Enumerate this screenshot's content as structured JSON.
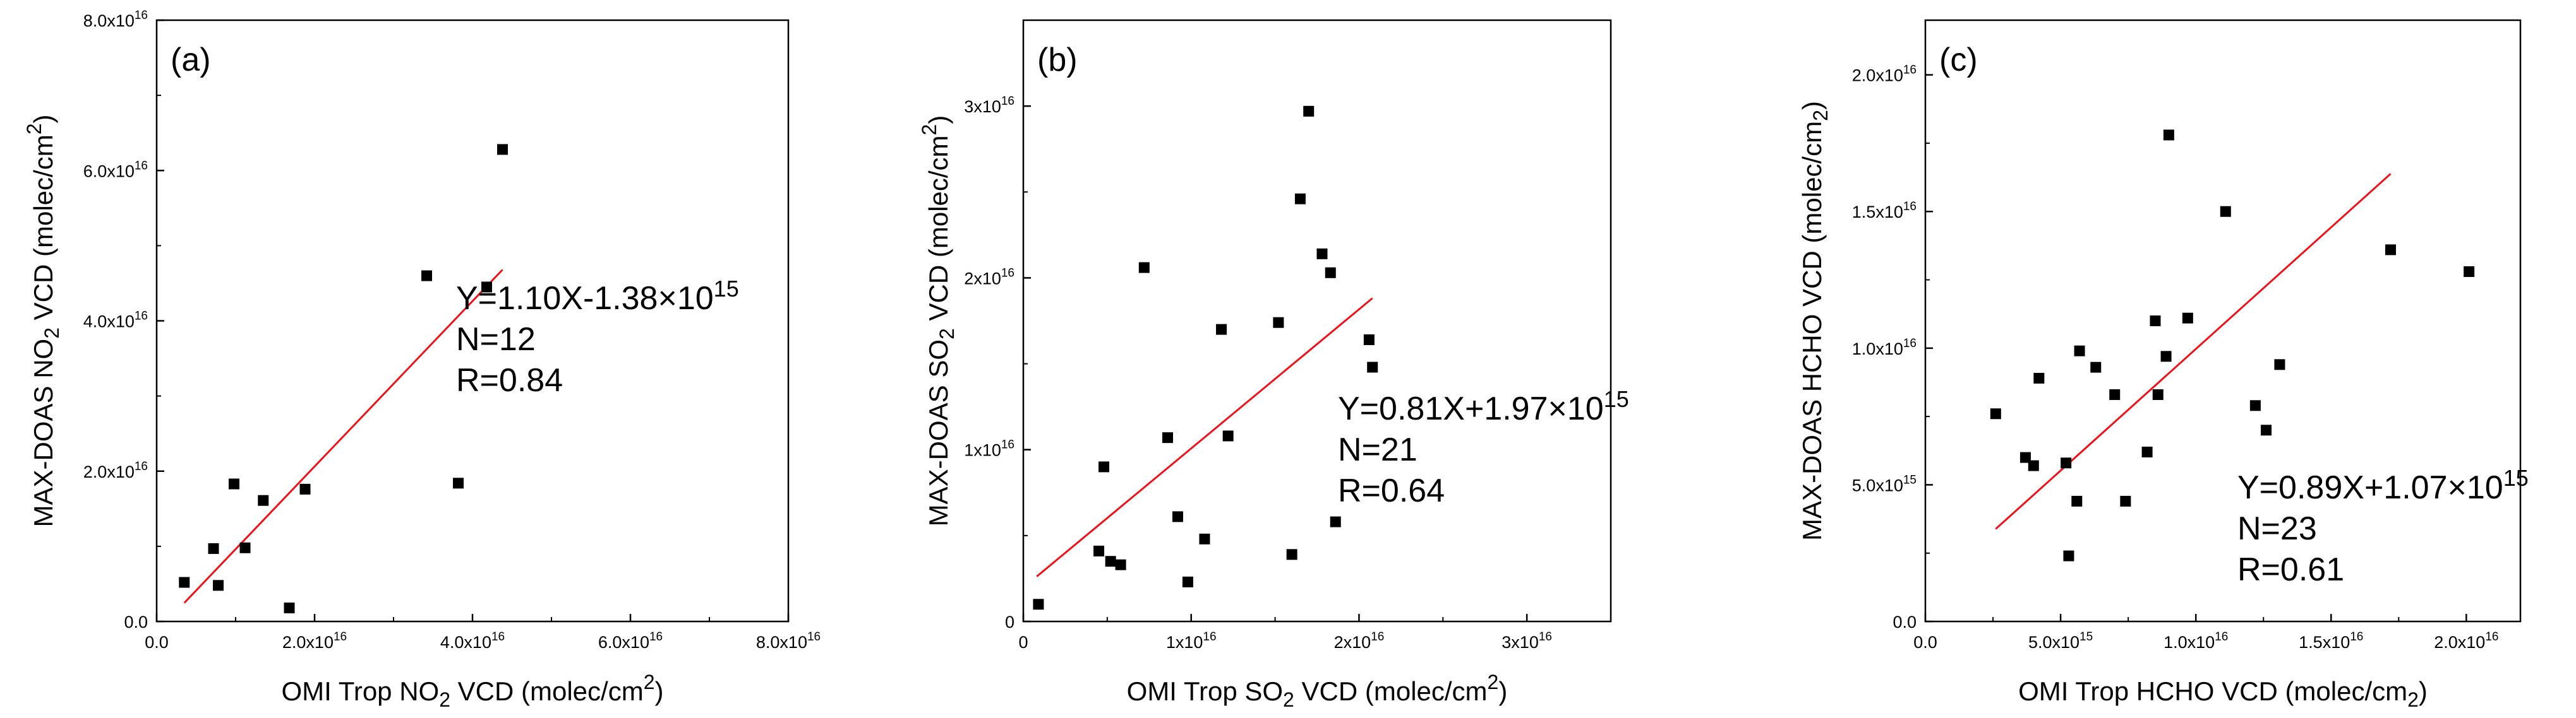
{
  "chart_data": [
    {
      "type": "scatter",
      "panel_label": "(a)",
      "title": "",
      "xlabel_parts": [
        "OMI Trop NO",
        "2",
        " VCD (molec/cm",
        "2",
        ")"
      ],
      "ylabel_parts": [
        "MAX-DOAS NO",
        "2",
        " VCD (molec/cm",
        "2",
        ")"
      ],
      "xlim": [
        0,
        8e+16
      ],
      "ylim": [
        0,
        8e+16
      ],
      "xticks": [
        0.0,
        2e+16,
        4e+16,
        6e+16,
        8e+16
      ],
      "yticks": [
        0.0,
        2e+16,
        4e+16,
        6e+16,
        8e+16
      ],
      "xtick_labels": [
        {
          "base": "0.0",
          "exp": ""
        },
        {
          "base": "2.0x10",
          "exp": "16"
        },
        {
          "base": "4.0x10",
          "exp": "16"
        },
        {
          "base": "6.0x10",
          "exp": "16"
        },
        {
          "base": "8.0x10",
          "exp": "16"
        }
      ],
      "ytick_labels": [
        {
          "base": "0.0",
          "exp": ""
        },
        {
          "base": "2.0x10",
          "exp": "16"
        },
        {
          "base": "4.0x10",
          "exp": "16"
        },
        {
          "base": "6.0x10",
          "exp": "16"
        },
        {
          "base": "8.0x10",
          "exp": "16"
        }
      ],
      "points": [
        [
          3500000000000000.0,
          5200000000000000.0
        ],
        [
          7200000000000000.0,
          9700000000000000.0
        ],
        [
          7800000000000000.0,
          4800000000000000.0
        ],
        [
          9800000000000000.0,
          1.83e+16
        ],
        [
          1.12e+16,
          9800000000000000.0
        ],
        [
          1.35e+16,
          1.61e+16
        ],
        [
          1.68e+16,
          1800000000000000.0
        ],
        [
          1.88e+16,
          1.76e+16
        ],
        [
          3.42e+16,
          4.6e+16
        ],
        [
          3.82e+16,
          1.84e+16
        ],
        [
          4.18e+16,
          4.45e+16
        ],
        [
          4.38e+16,
          6.28e+16
        ]
      ],
      "fit_line": {
        "x": [
          3500000000000000.0,
          4.38e+16
        ],
        "slope": 1.1,
        "intercept": -1380000000000000.0,
        "color": "#e8141b"
      },
      "annotation": {
        "equation_base": "Y=1.10X-1.38×10",
        "equation_exp": "15",
        "n": "N=12",
        "r": "R=0.84"
      },
      "marker_color": "#000000"
    },
    {
      "type": "scatter",
      "panel_label": "(b)",
      "title": "",
      "xlabel_parts": [
        "OMI Trop SO",
        "2",
        " VCD (molec/cm",
        "2",
        ")"
      ],
      "ylabel_parts": [
        "MAX-DOAS SO",
        "2",
        " VCD (molec/cm",
        "2",
        ")"
      ],
      "xlim": [
        0,
        3.5e+16
      ],
      "ylim": [
        0,
        3.5e+16
      ],
      "xticks": [
        0,
        1e+16,
        2e+16,
        3e+16
      ],
      "yticks": [
        0,
        1e+16,
        2e+16,
        3e+16
      ],
      "xtick_labels": [
        {
          "base": "0",
          "exp": ""
        },
        {
          "base": "1x10",
          "exp": "16"
        },
        {
          "base": "2x10",
          "exp": "16"
        },
        {
          "base": "3x10",
          "exp": "16"
        }
      ],
      "ytick_labels": [
        {
          "base": "0",
          "exp": ""
        },
        {
          "base": "1x10",
          "exp": "16"
        },
        {
          "base": "2x10",
          "exp": "16"
        },
        {
          "base": "3x10",
          "exp": "16"
        }
      ],
      "points": [
        [
          900000000000000.0,
          1000000000000000.0
        ],
        [
          4500000000000000.0,
          4100000000000000.0
        ],
        [
          4800000000000000.0,
          9000000000000000.0
        ],
        [
          5200000000000000.0,
          3500000000000000.0
        ],
        [
          5800000000000000.0,
          3300000000000000.0
        ],
        [
          7200000000000000.0,
          2.06e+16
        ],
        [
          8600000000000000.0,
          1.07e+16
        ],
        [
          9200000000000000.0,
          6100000000000000.0
        ],
        [
          9800000000000000.0,
          2300000000000000.0
        ],
        [
          1.08e+16,
          4800000000000000.0
        ],
        [
          1.18e+16,
          1.7e+16
        ],
        [
          1.22e+16,
          1.08e+16
        ],
        [
          1.52e+16,
          1.74e+16
        ],
        [
          1.6e+16,
          3900000000000000.0
        ],
        [
          1.65e+16,
          2.46e+16
        ],
        [
          1.7e+16,
          2.97e+16
        ],
        [
          1.78e+16,
          2.14e+16
        ],
        [
          1.83e+16,
          2.03e+16
        ],
        [
          1.86e+16,
          5800000000000000.0
        ],
        [
          2.06e+16,
          1.64e+16
        ],
        [
          2.08e+16,
          1.48e+16
        ]
      ],
      "fit_line": {
        "x": [
          800000000000000.0,
          2.08e+16
        ],
        "slope": 0.81,
        "intercept": 1970000000000000.0,
        "color": "#e8141b"
      },
      "annotation": {
        "equation_base": "Y=0.81X+1.97×10",
        "equation_exp": "15",
        "n": "N=21",
        "r": "R=0.64"
      },
      "marker_color": "#000000"
    },
    {
      "type": "scatter",
      "panel_label": "(c)",
      "title": "",
      "xlabel_parts": [
        "OMI Trop HCHO VCD (molec/cm",
        "2",
        ")"
      ],
      "ylabel_parts": [
        "MAX-DOAS HCHO VCD (molec/cm",
        "2",
        ")"
      ],
      "xlim": [
        0,
        2.2e+16
      ],
      "ylim": [
        0,
        2.2e+16
      ],
      "xticks": [
        0,
        5000000000000000.0,
        1e+16,
        1.5e+16,
        2e+16
      ],
      "yticks": [
        0,
        5000000000000000.0,
        1e+16,
        1.5e+16,
        2e+16
      ],
      "xtick_labels": [
        {
          "base": "0.0",
          "exp": ""
        },
        {
          "base": "5.0x10",
          "exp": "15"
        },
        {
          "base": "1.0x10",
          "exp": "16"
        },
        {
          "base": "1.5x10",
          "exp": "16"
        },
        {
          "base": "2.0x10",
          "exp": "16"
        }
      ],
      "ytick_labels": [
        {
          "base": "0.0",
          "exp": ""
        },
        {
          "base": "5.0x10",
          "exp": "15"
        },
        {
          "base": "1.0x10",
          "exp": "16"
        },
        {
          "base": "1.5x10",
          "exp": "16"
        },
        {
          "base": "2.0x10",
          "exp": "16"
        }
      ],
      "points": [
        [
          2600000000000000.0,
          7600000000000000.0
        ],
        [
          3700000000000000.0,
          6000000000000000.0
        ],
        [
          4000000000000000.0,
          5700000000000000.0
        ],
        [
          4200000000000000.0,
          8900000000000000.0
        ],
        [
          5200000000000000.0,
          5800000000000000.0
        ],
        [
          5300000000000000.0,
          2400000000000000.0
        ],
        [
          5600000000000000.0,
          4400000000000000.0
        ],
        [
          5700000000000000.0,
          9900000000000000.0
        ],
        [
          6300000000000000.0,
          9300000000000000.0
        ],
        [
          7000000000000000.0,
          8300000000000000.0
        ],
        [
          7400000000000000.0,
          4400000000000000.0
        ],
        [
          8200000000000000.0,
          6200000000000000.0
        ],
        [
          8500000000000000.0,
          1.1e+16
        ],
        [
          8600000000000000.0,
          8300000000000000.0
        ],
        [
          8900000000000000.0,
          9700000000000000.0
        ],
        [
          9000000000000000.0,
          1.78e+16
        ],
        [
          9700000000000000.0,
          1.11e+16
        ],
        [
          1.11e+16,
          1.5e+16
        ],
        [
          1.22e+16,
          7900000000000000.0
        ],
        [
          1.26e+16,
          7000000000000000.0
        ],
        [
          1.31e+16,
          9400000000000000.0
        ],
        [
          1.72e+16,
          1.36e+16
        ],
        [
          2.01e+16,
          1.28e+16
        ]
      ],
      "fit_line": {
        "x": [
          2600000000000000.0,
          1.72e+16
        ],
        "slope": 0.89,
        "intercept": 1070000000000000.0,
        "color": "#e8141b"
      },
      "annotation": {
        "equation_base": "Y=0.89X+1.07×10",
        "equation_exp": "15",
        "n": "N=23",
        "r": "R=0.61"
      },
      "marker_color": "#000000"
    }
  ]
}
